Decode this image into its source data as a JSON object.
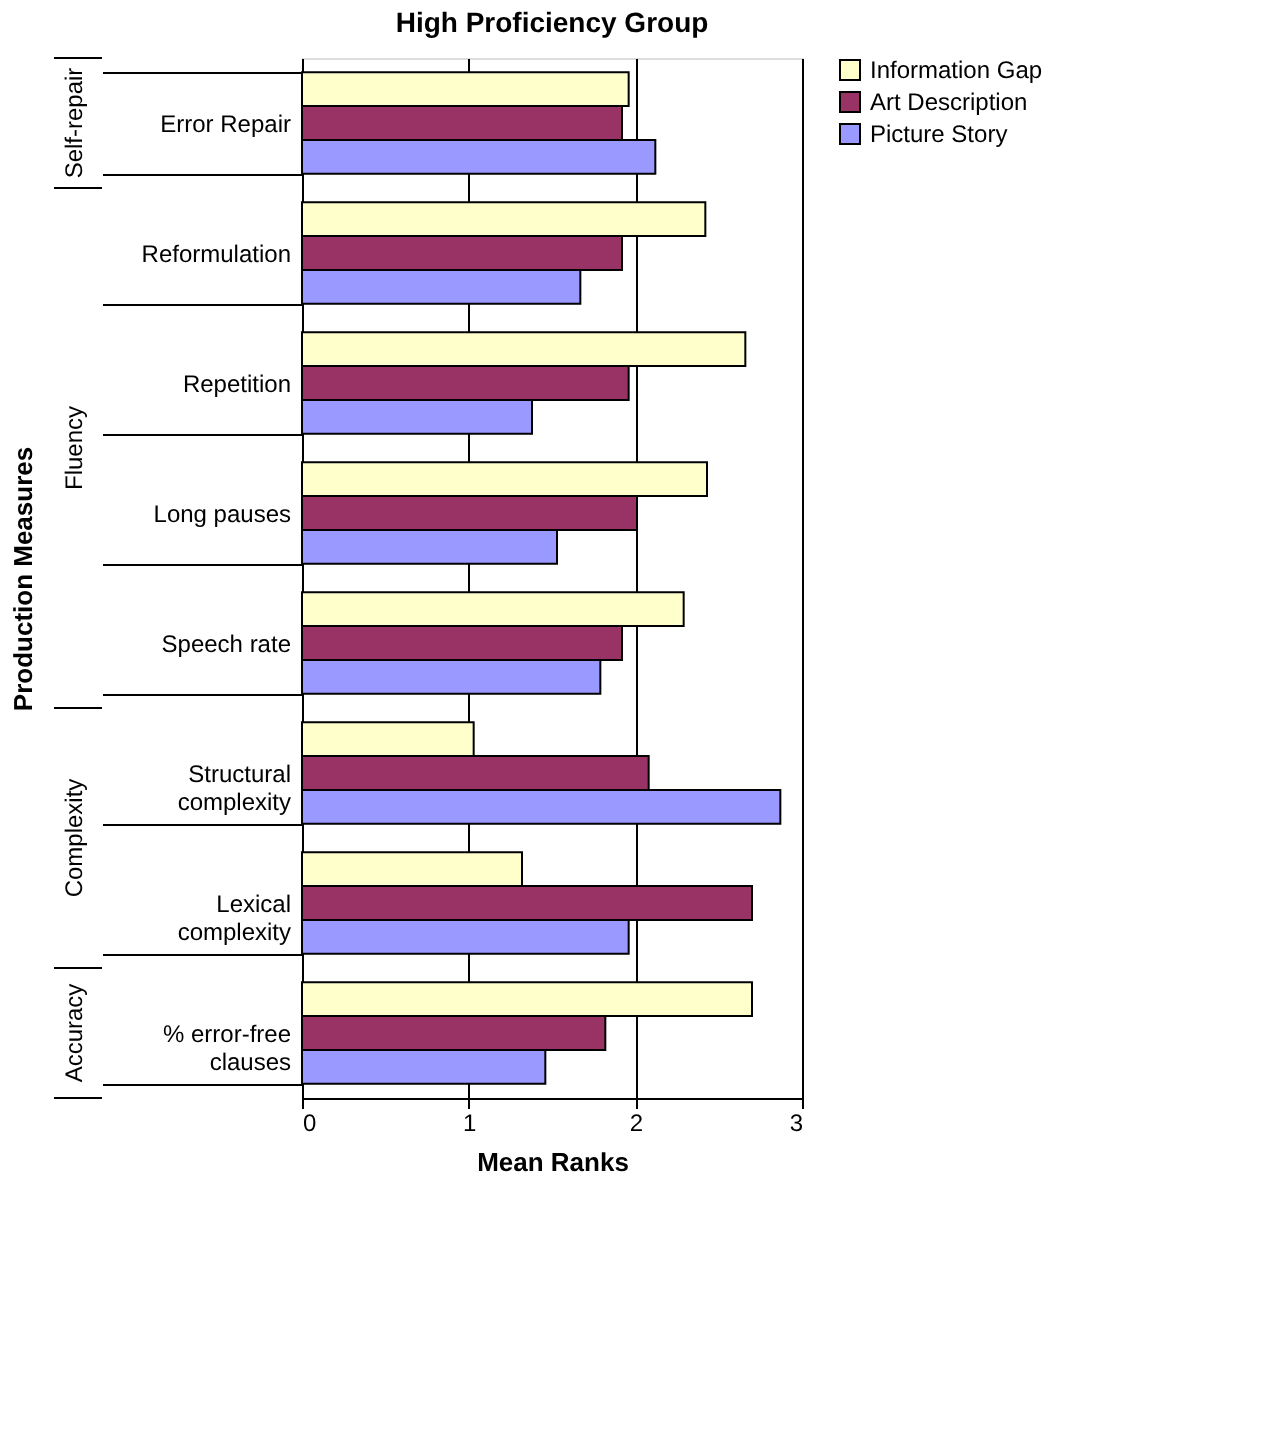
{
  "chart_data": {
    "type": "bar",
    "orientation": "horizontal",
    "title": "High Proficiency Group",
    "xlabel": "Mean Ranks",
    "ylabel": "Production Measures",
    "categories": [
      "Error Repair",
      "Reformulation",
      "Repetition",
      "Long pauses",
      "Speech rate",
      "Structural\ncomplexity",
      "Lexical\ncomplexity",
      "% error-free\nclauses"
    ],
    "series": [
      {
        "name": "Information Gap",
        "color": "#ffffcc",
        "values": [
          1.96,
          2.42,
          2.66,
          2.43,
          2.29,
          1.03,
          1.32,
          2.7
        ]
      },
      {
        "name": "Art Description",
        "color": "#993366",
        "values": [
          1.92,
          1.92,
          1.96,
          2.01,
          1.92,
          2.08,
          2.7,
          1.82
        ]
      },
      {
        "name": "Picture Story",
        "color": "#9999ff",
        "values": [
          2.12,
          1.67,
          1.38,
          1.53,
          1.79,
          2.87,
          1.96,
          1.46
        ]
      }
    ],
    "xlim": [
      0,
      3
    ],
    "xticks": [
      0,
      1,
      2,
      3
    ],
    "grid": "x",
    "legend": "right",
    "annotations": [
      "Self-repair",
      "Fluency",
      "Complexity",
      "Accuracy"
    ]
  }
}
